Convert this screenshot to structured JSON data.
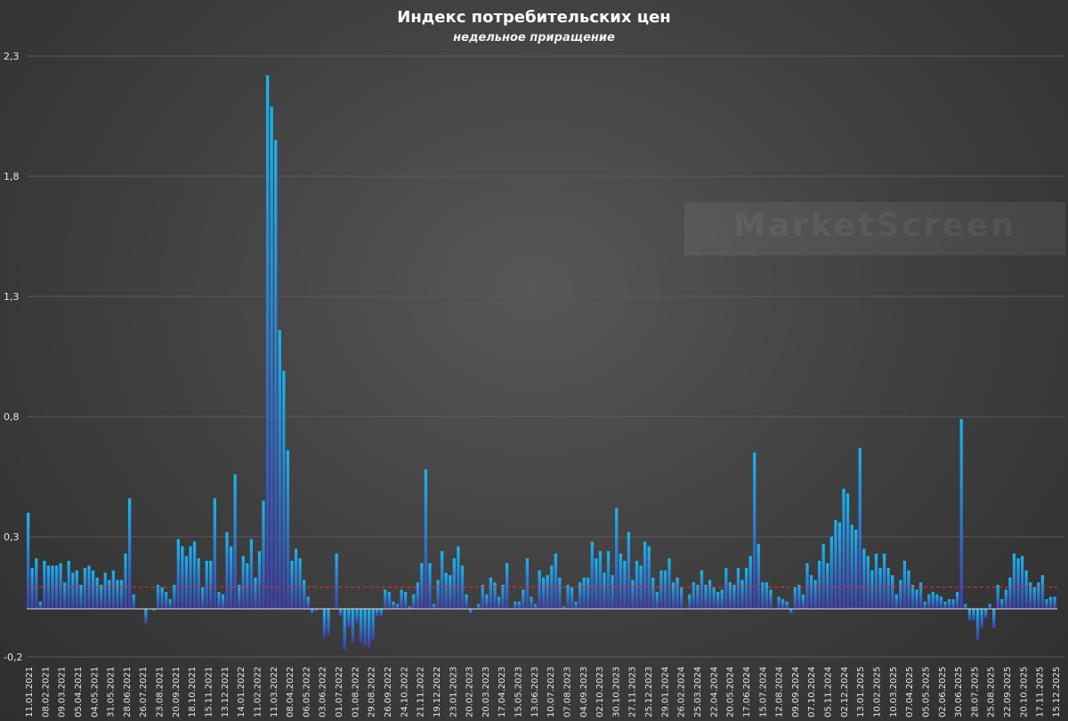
{
  "title": "Индекс потребительских цен",
  "subtitle": "недельное приращение",
  "watermark": "MarketScreen",
  "chart_data": {
    "type": "bar",
    "title": "Индекс потребительских цен",
    "subtitle": "недельное приращение",
    "ylim": [
      -0.2,
      2.3
    ],
    "yticks": [
      "-0,2",
      "0,3",
      "0,8",
      "1,3",
      "1,8",
      "2,3"
    ],
    "ytick_values": [
      -0.2,
      0.3,
      0.8,
      1.3,
      1.8,
      2.3
    ],
    "grid": true,
    "reference_line": 0.09,
    "start_date": "11.01.2021",
    "end_date": "15.12.2025",
    "xtick_labels": [
      "11.01.2021",
      "08.02.2021",
      "09.03.2021",
      "05.04.2021",
      "04.05.2021",
      "31.05.2021",
      "28.06.2021",
      "26.07.2021",
      "23.08.2021",
      "20.09.2021",
      "18.10.2021",
      "15.11.2021",
      "13.12.2021",
      "14.01.2022",
      "11.02.2022",
      "11.03.2022",
      "08.04.2022",
      "06.05.2022",
      "03.06.2022",
      "01.07.2022",
      "01.08.2022",
      "29.08.2022",
      "26.09.2022",
      "24.10.2022",
      "21.11.2022",
      "19.12.2022",
      "23.01.2023",
      "20.02.2023",
      "20.03.2023",
      "17.04.2023",
      "15.05.2023",
      "13.06.2023",
      "10.07.2023",
      "07.08.2023",
      "04.09.2023",
      "02.10.2023",
      "30.10.2023",
      "27.11.2023",
      "25.12.2023",
      "29.01.2024",
      "26.02.2024",
      "25.03.2024",
      "22.04.2024",
      "20.05.2024",
      "17.06.2024",
      "15.07.2024",
      "12.08.2024",
      "09.09.2024",
      "07.10.2024",
      "05.11.2024",
      "02.12.2024",
      "13.01.2025",
      "10.02.2025",
      "10.03.2025",
      "07.04.2025",
      "05.05.2025",
      "02.06.2025",
      "30.06.2025",
      "28.07.2025",
      "25.08.2025",
      "22.09.2025",
      "20.10.2025",
      "17.11.2025",
      "15.12.2025"
    ],
    "colors": {
      "bar_top": "#1ab4ef",
      "bar_bottom": "#3d3fae",
      "reference_line": "#d9302b",
      "grid": "#5a5a5a",
      "zero_line": "#dddddd"
    },
    "values": [
      0.4,
      0.17,
      0.21,
      0.03,
      0.2,
      0.18,
      0.18,
      0.18,
      0.19,
      0.11,
      0.2,
      0.15,
      0.16,
      0.1,
      0.17,
      0.18,
      0.16,
      0.13,
      0.1,
      0.15,
      0.12,
      0.16,
      0.12,
      0.12,
      0.23,
      0.46,
      0.06,
      0.0,
      0.0,
      -0.06,
      0.0,
      -0.01,
      0.1,
      0.09,
      0.07,
      0.04,
      0.1,
      0.29,
      0.26,
      0.22,
      0.26,
      0.28,
      0.21,
      0.09,
      0.2,
      0.2,
      0.46,
      0.07,
      0.06,
      0.32,
      0.26,
      0.56,
      0.1,
      0.22,
      0.19,
      0.29,
      0.13,
      0.24,
      0.45,
      2.22,
      2.09,
      1.95,
      1.16,
      0.99,
      0.66,
      0.2,
      0.25,
      0.21,
      0.12,
      0.05,
      -0.02,
      -0.01,
      0.0,
      -0.12,
      -0.11,
      0.0,
      0.23,
      -0.03,
      -0.17,
      -0.08,
      -0.14,
      -0.06,
      -0.14,
      -0.15,
      -0.16,
      -0.13,
      -0.03,
      -0.03,
      0.08,
      0.07,
      0.03,
      0.02,
      0.08,
      0.07,
      0.01,
      0.06,
      0.11,
      0.19,
      0.58,
      0.19,
      0.02,
      0.12,
      0.24,
      0.15,
      0.14,
      0.21,
      0.26,
      0.18,
      0.06,
      -0.02,
      0.0,
      0.02,
      0.1,
      0.06,
      0.13,
      0.11,
      0.05,
      0.1,
      0.19,
      0.0,
      0.03,
      0.03,
      0.08,
      0.21,
      0.05,
      0.02,
      0.16,
      0.13,
      0.14,
      0.18,
      0.23,
      0.13,
      0.01,
      0.1,
      0.09,
      0.03,
      0.11,
      0.13,
      0.13,
      0.28,
      0.21,
      0.24,
      0.15,
      0.24,
      0.14,
      0.42,
      0.23,
      0.2,
      0.32,
      0.12,
      0.2,
      0.18,
      0.28,
      0.26,
      0.13,
      0.07,
      0.16,
      0.16,
      0.21,
      0.11,
      0.13,
      0.09,
      0.0,
      0.06,
      0.11,
      0.1,
      0.16,
      0.1,
      0.12,
      0.09,
      0.07,
      0.08,
      0.17,
      0.11,
      0.1,
      0.17,
      0.12,
      0.17,
      0.22,
      0.65,
      0.27,
      0.11,
      0.11,
      0.08,
      0.0,
      0.05,
      0.04,
      0.03,
      -0.02,
      0.09,
      0.1,
      0.06,
      0.19,
      0.14,
      0.12,
      0.2,
      0.27,
      0.19,
      0.3,
      0.37,
      0.36,
      0.5,
      0.48,
      0.35,
      0.33,
      0.67,
      0.25,
      0.22,
      0.16,
      0.23,
      0.17,
      0.23,
      0.17,
      0.14,
      0.06,
      0.12,
      0.2,
      0.16,
      0.1,
      0.08,
      0.11,
      0.03,
      0.06,
      0.07,
      0.06,
      0.05,
      0.03,
      0.04,
      0.04,
      0.07,
      0.79,
      0.02,
      -0.05,
      -0.05,
      -0.13,
      -0.08,
      -0.04,
      0.02,
      -0.08,
      0.1,
      0.04,
      0.08,
      0.13,
      0.23,
      0.21,
      0.22,
      0.16,
      0.11,
      0.09,
      0.11,
      0.14,
      0.04,
      0.05,
      0.05
    ]
  }
}
